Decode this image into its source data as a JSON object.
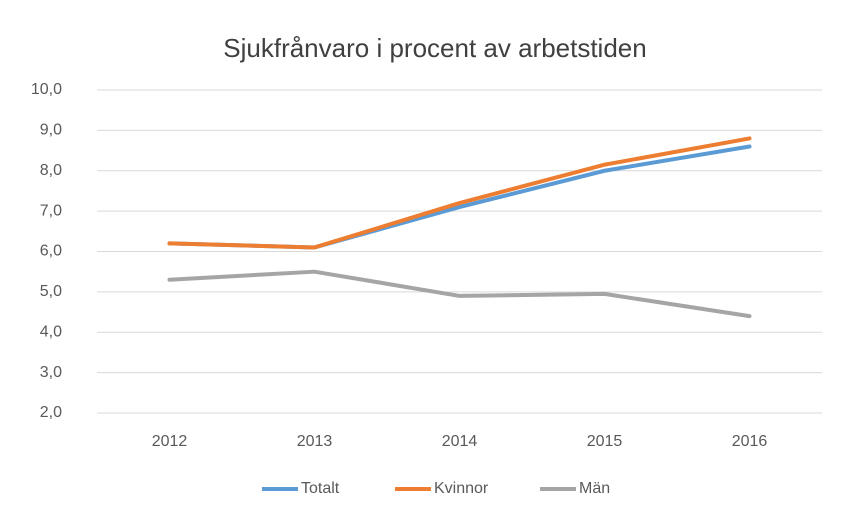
{
  "chart_data": {
    "type": "line",
    "title": "Sjukfrånvaro i procent av arbetstiden",
    "categories": [
      "2012",
      "2013",
      "2014",
      "2015",
      "2016"
    ],
    "series": [
      {
        "name": "Totalt",
        "color": "#5b9bd5",
        "values": [
          6.2,
          6.1,
          7.1,
          8.0,
          8.6
        ]
      },
      {
        "name": "Kvinnor",
        "color": "#ed7d31",
        "values": [
          6.2,
          6.1,
          7.2,
          8.15,
          8.8
        ]
      },
      {
        "name": "Män",
        "color": "#a5a5a5",
        "values": [
          5.3,
          5.5,
          4.9,
          4.95,
          4.4
        ]
      }
    ],
    "ylim": [
      2,
      10
    ],
    "yticks": [
      {
        "value": 2,
        "label": "2,0"
      },
      {
        "value": 3,
        "label": "3,0"
      },
      {
        "value": 4,
        "label": "4,0"
      },
      {
        "value": 5,
        "label": "5,0"
      },
      {
        "value": 6,
        "label": "6,0"
      },
      {
        "value": 7,
        "label": "7,0"
      },
      {
        "value": 8,
        "label": "8,0"
      },
      {
        "value": 9,
        "label": "9,0"
      },
      {
        "value": 10,
        "label": "10,0"
      }
    ],
    "grid": true,
    "legend": "bottom"
  }
}
